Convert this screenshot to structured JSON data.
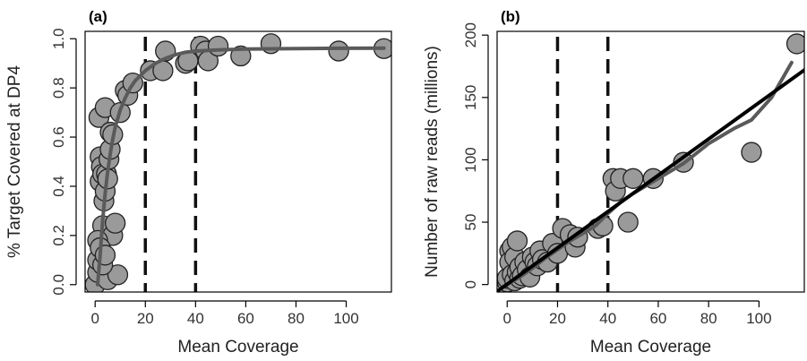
{
  "chart_data": [
    {
      "type": "scatter",
      "panel_label": "(a)",
      "xlabel": "Mean Coverage",
      "ylabel": "% Target Covered at DP4",
      "xlim": [
        -4,
        118
      ],
      "ylim": [
        -0.03,
        1.03
      ],
      "x_ticks": [
        0,
        20,
        40,
        60,
        80,
        100
      ],
      "x_tick_labels": [
        "0",
        "20",
        "40",
        "60",
        "80",
        "100"
      ],
      "y_ticks": [
        0,
        0.2,
        0.4,
        0.6,
        0.8,
        1.0
      ],
      "y_tick_labels": [
        "0.0",
        "0.2",
        "0.4",
        "0.6",
        "0.8",
        "1.0"
      ],
      "vlines": [
        20,
        40
      ],
      "points": {
        "x": [
          0,
          1,
          1.5,
          2,
          2,
          2.5,
          3,
          3,
          3.5,
          4,
          4,
          4.5,
          5,
          5,
          5.5,
          6,
          6,
          7,
          7,
          8,
          9,
          10,
          12,
          13,
          15,
          22,
          27,
          28,
          36,
          37,
          42,
          44,
          45,
          49,
          58,
          70,
          97,
          115,
          1,
          1,
          2,
          3,
          4
        ],
        "y": [
          0.0,
          0.05,
          0.68,
          0.52,
          0.42,
          0.48,
          0.45,
          0.24,
          0.34,
          0.38,
          0.72,
          0.45,
          0.43,
          0.02,
          0.51,
          0.55,
          0.62,
          0.61,
          0.2,
          0.25,
          0.04,
          0.7,
          0.79,
          0.77,
          0.82,
          0.87,
          0.87,
          0.95,
          0.9,
          0.91,
          0.97,
          0.95,
          0.91,
          0.97,
          0.93,
          0.98,
          0.95,
          0.96,
          0.1,
          0.18,
          0.15,
          0.08,
          0.12
        ]
      },
      "series": [
        {
          "style": "line",
          "color": "#5a5a5a",
          "x": [
            1,
            2,
            3,
            4,
            5,
            6,
            7,
            8,
            10,
            12,
            14,
            16,
            18,
            20,
            24,
            28,
            32,
            36,
            40,
            50,
            60,
            80,
            100,
            115
          ],
          "y": [
            0.0,
            0.12,
            0.26,
            0.37,
            0.46,
            0.53,
            0.59,
            0.64,
            0.71,
            0.76,
            0.8,
            0.83,
            0.85,
            0.87,
            0.9,
            0.92,
            0.935,
            0.945,
            0.95,
            0.955,
            0.958,
            0.96,
            0.961,
            0.962
          ]
        }
      ]
    },
    {
      "type": "scatter",
      "panel_label": "(b)",
      "xlabel": "Mean Coverage",
      "ylabel": "Number of raw reads (millions)",
      "xlim": [
        -4,
        118
      ],
      "ylim": [
        -6,
        203
      ],
      "x_ticks": [
        0,
        20,
        40,
        60,
        80,
        100
      ],
      "x_tick_labels": [
        "0",
        "20",
        "40",
        "60",
        "80",
        "100"
      ],
      "y_ticks": [
        0,
        50,
        100,
        150,
        200
      ],
      "y_tick_labels": [
        "0",
        "50",
        "100",
        "150",
        "200"
      ],
      "vlines": [
        20,
        40
      ],
      "points": {
        "x": [
          0,
          0,
          1,
          1,
          2,
          2,
          3,
          3,
          4,
          4,
          5,
          5,
          6,
          7,
          8,
          9,
          10,
          11,
          12,
          13,
          14,
          16,
          18,
          20,
          22,
          25,
          27,
          28,
          36,
          38,
          42,
          43,
          45,
          48,
          50,
          58,
          70,
          97,
          115
        ],
        "y": [
          2,
          5,
          27,
          18,
          8,
          30,
          3,
          22,
          10,
          35,
          5,
          14,
          7,
          18,
          12,
          6,
          22,
          18,
          15,
          27,
          20,
          18,
          33,
          25,
          45,
          40,
          30,
          38,
          45,
          47,
          85,
          75,
          85,
          50,
          85,
          85,
          98,
          106,
          193
        ]
      },
      "series": [
        {
          "style": "line",
          "color": "#5a5a5a",
          "x": [
            0,
            5,
            10,
            15,
            20,
            25,
            30,
            35,
            40,
            45,
            50,
            55,
            60,
            65,
            70,
            80,
            90,
            97,
            105,
            113
          ],
          "y": [
            0,
            6,
            13,
            21,
            28,
            35,
            41,
            47,
            57,
            66,
            73,
            79,
            85,
            91,
            97,
            113,
            125,
            132,
            150,
            178
          ]
        },
        {
          "style": "line",
          "color": "#000000",
          "x": [
            -4,
            118
          ],
          "y": [
            -5.5,
            172
          ]
        }
      ]
    }
  ]
}
